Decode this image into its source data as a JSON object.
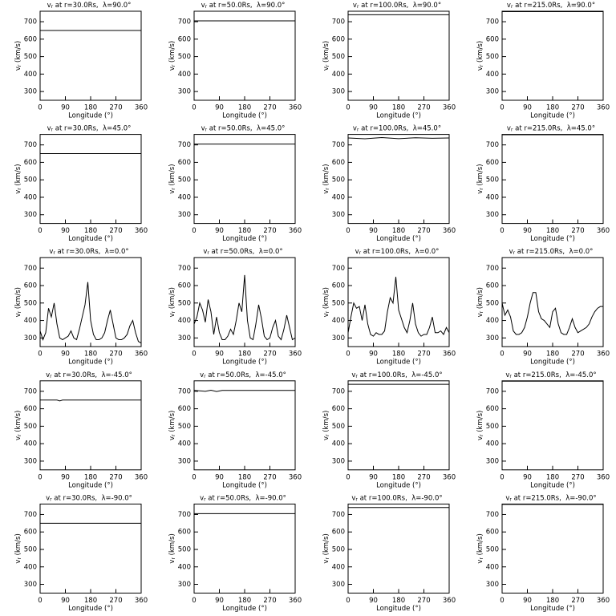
{
  "chart_data": [
    {
      "type": "line",
      "title": {
        "var": "v",
        "sub": "r",
        "text": " at r=30.0Rs,  λ=90.0°"
      },
      "xlabel": "Longitude (°)",
      "ylabel": {
        "var": "v",
        "sub": "r",
        "text": " (km/s)"
      },
      "x": [
        0,
        360
      ],
      "values": [
        650,
        650
      ],
      "color": "#000000",
      "xlim": [
        0,
        360
      ],
      "ylim": [
        250,
        760
      ],
      "xticks": [
        0,
        90,
        180,
        270,
        360
      ],
      "yticks": [
        300,
        400,
        500,
        600,
        700
      ]
    },
    {
      "type": "line",
      "title": {
        "var": "v",
        "sub": "r",
        "text": " at r=50.0Rs,  λ=90.0°"
      },
      "xlabel": "Longitude (°)",
      "ylabel": {
        "var": "v",
        "sub": "r",
        "text": " (km/s)"
      },
      "x": [
        0,
        360
      ],
      "values": [
        705,
        705
      ],
      "color": "#000000",
      "xlim": [
        0,
        360
      ],
      "ylim": [
        250,
        760
      ],
      "xticks": [
        0,
        90,
        180,
        270,
        360
      ],
      "yticks": [
        300,
        400,
        500,
        600,
        700
      ]
    },
    {
      "type": "line",
      "title": {
        "var": "v",
        "sub": "r",
        "text": " at r=100.0Rs,  λ=90.0°"
      },
      "xlabel": "Longitude (°)",
      "ylabel": {
        "var": "v",
        "sub": "r",
        "text": " (km/s)"
      },
      "x": [
        0,
        360
      ],
      "values": [
        740,
        740
      ],
      "color": "#000000",
      "xlim": [
        0,
        360
      ],
      "ylim": [
        250,
        760
      ],
      "xticks": [
        0,
        90,
        180,
        270,
        360
      ],
      "yticks": [
        300,
        400,
        500,
        600,
        700
      ]
    },
    {
      "type": "line",
      "title": {
        "var": "v",
        "sub": "r",
        "text": " at r=215.0Rs,  λ=90.0°"
      },
      "xlabel": "Longitude (°)",
      "ylabel": {
        "var": "v",
        "sub": "r",
        "text": " (km/s)"
      },
      "x": [
        0,
        360
      ],
      "values": [
        758,
        758
      ],
      "color": "#000000",
      "xlim": [
        0,
        360
      ],
      "ylim": [
        250,
        760
      ],
      "xticks": [
        0,
        90,
        180,
        270,
        360
      ],
      "yticks": [
        300,
        400,
        500,
        600,
        700
      ]
    },
    {
      "type": "line",
      "title": {
        "var": "v",
        "sub": "r",
        "text": " at r=30.0Rs,  λ=45.0°"
      },
      "xlabel": "Longitude (°)",
      "ylabel": {
        "var": "v",
        "sub": "r",
        "text": " (km/s)"
      },
      "x": [
        0,
        360
      ],
      "values": [
        650,
        650
      ],
      "color": "#000000",
      "xlim": [
        0,
        360
      ],
      "ylim": [
        250,
        760
      ],
      "xticks": [
        0,
        90,
        180,
        270,
        360
      ],
      "yticks": [
        300,
        400,
        500,
        600,
        700
      ]
    },
    {
      "type": "line",
      "title": {
        "var": "v",
        "sub": "r",
        "text": " at r=50.0Rs,  λ=45.0°"
      },
      "xlabel": "Longitude (°)",
      "ylabel": {
        "var": "v",
        "sub": "r",
        "text": " (km/s)"
      },
      "x": [
        0,
        360
      ],
      "values": [
        705,
        705
      ],
      "color": "#000000",
      "xlim": [
        0,
        360
      ],
      "ylim": [
        250,
        760
      ],
      "xticks": [
        0,
        90,
        180,
        270,
        360
      ],
      "yticks": [
        300,
        400,
        500,
        600,
        700
      ]
    },
    {
      "type": "line",
      "title": {
        "var": "v",
        "sub": "r",
        "text": " at r=100.0Rs,  λ=45.0°"
      },
      "xlabel": "Longitude (°)",
      "ylabel": {
        "var": "v",
        "sub": "r",
        "text": " (km/s)"
      },
      "x": [
        0,
        60,
        120,
        180,
        240,
        300,
        360
      ],
      "values": [
        740,
        735,
        742,
        736,
        741,
        738,
        740
      ],
      "color": "#000000",
      "xlim": [
        0,
        360
      ],
      "ylim": [
        250,
        760
      ],
      "xticks": [
        0,
        90,
        180,
        270,
        360
      ],
      "yticks": [
        300,
        400,
        500,
        600,
        700
      ]
    },
    {
      "type": "line",
      "title": {
        "var": "v",
        "sub": "r",
        "text": " at r=215.0Rs,  λ=45.0°"
      },
      "xlabel": "Longitude (°)",
      "ylabel": {
        "var": "v",
        "sub": "r",
        "text": " (km/s)"
      },
      "x": [
        0,
        360
      ],
      "values": [
        758,
        758
      ],
      "color": "#000000",
      "xlim": [
        0,
        360
      ],
      "ylim": [
        250,
        760
      ],
      "xticks": [
        0,
        90,
        180,
        270,
        360
      ],
      "yticks": [
        300,
        400,
        500,
        600,
        700
      ]
    },
    {
      "type": "line",
      "title": {
        "var": "v",
        "sub": "r",
        "text": " at r=30.0Rs,  λ=0.0°"
      },
      "xlabel": "Longitude (°)",
      "ylabel": {
        "var": "v",
        "sub": "r",
        "text": " (km/s)"
      },
      "x": [
        0,
        10,
        20,
        30,
        40,
        50,
        60,
        70,
        80,
        90,
        100,
        110,
        120,
        130,
        140,
        150,
        160,
        170,
        180,
        190,
        200,
        210,
        220,
        230,
        240,
        250,
        260,
        270,
        280,
        290,
        300,
        310,
        320,
        330,
        340,
        350,
        360
      ],
      "values": [
        340,
        290,
        330,
        470,
        420,
        500,
        380,
        300,
        290,
        300,
        310,
        340,
        300,
        290,
        350,
        420,
        490,
        620,
        400,
        320,
        290,
        290,
        300,
        330,
        400,
        460,
        380,
        300,
        290,
        290,
        300,
        320,
        370,
        400,
        330,
        280,
        270
      ],
      "color": "#000000",
      "xlim": [
        0,
        360
      ],
      "ylim": [
        250,
        760
      ],
      "xticks": [
        0,
        90,
        180,
        270,
        360
      ],
      "yticks": [
        300,
        400,
        500,
        600,
        700
      ]
    },
    {
      "type": "line",
      "title": {
        "var": "v",
        "sub": "r",
        "text": " at r=50.0Rs,  λ=0.0°"
      },
      "xlabel": "Longitude (°)",
      "ylabel": {
        "var": "v",
        "sub": "r",
        "text": " (km/s)"
      },
      "x": [
        0,
        10,
        20,
        30,
        40,
        50,
        60,
        70,
        80,
        90,
        100,
        110,
        120,
        130,
        140,
        150,
        160,
        170,
        180,
        190,
        200,
        210,
        220,
        230,
        240,
        250,
        260,
        270,
        280,
        290,
        300,
        310,
        320,
        330,
        340,
        350,
        360
      ],
      "values": [
        380,
        420,
        500,
        460,
        390,
        520,
        450,
        320,
        420,
        330,
        290,
        290,
        310,
        350,
        320,
        400,
        500,
        450,
        660,
        400,
        300,
        290,
        380,
        490,
        410,
        310,
        290,
        300,
        360,
        400,
        310,
        290,
        350,
        430,
        360,
        290,
        300
      ],
      "color": "#000000",
      "xlim": [
        0,
        360
      ],
      "ylim": [
        250,
        760
      ],
      "xticks": [
        0,
        90,
        180,
        270,
        360
      ],
      "yticks": [
        300,
        400,
        500,
        600,
        700
      ]
    },
    {
      "type": "line",
      "title": {
        "var": "v",
        "sub": "r",
        "text": " at r=100.0Rs,  λ=0.0°"
      },
      "xlabel": "Longitude (°)",
      "ylabel": {
        "var": "v",
        "sub": "r",
        "text": " (km/s)"
      },
      "x": [
        0,
        10,
        20,
        30,
        40,
        50,
        60,
        70,
        80,
        90,
        100,
        110,
        120,
        130,
        140,
        150,
        160,
        170,
        180,
        190,
        200,
        210,
        220,
        230,
        240,
        250,
        260,
        270,
        280,
        290,
        300,
        310,
        320,
        330,
        340,
        350,
        360
      ],
      "values": [
        330,
        420,
        500,
        470,
        480,
        400,
        490,
        380,
        320,
        310,
        330,
        320,
        320,
        340,
        450,
        530,
        500,
        650,
        460,
        410,
        360,
        330,
        400,
        500,
        380,
        330,
        310,
        320,
        320,
        360,
        420,
        330,
        330,
        340,
        320,
        360,
        330
      ],
      "color": "#000000",
      "xlim": [
        0,
        360
      ],
      "ylim": [
        250,
        760
      ],
      "xticks": [
        0,
        90,
        180,
        270,
        360
      ],
      "yticks": [
        300,
        400,
        500,
        600,
        700
      ]
    },
    {
      "type": "line",
      "title": {
        "var": "v",
        "sub": "r",
        "text": " at r=215.0Rs,  λ=0.0°"
      },
      "xlabel": "Longitude (°)",
      "ylabel": {
        "var": "v",
        "sub": "r",
        "text": " (km/s)"
      },
      "x": [
        0,
        10,
        20,
        30,
        40,
        50,
        60,
        70,
        80,
        90,
        100,
        110,
        120,
        130,
        140,
        150,
        160,
        170,
        180,
        190,
        200,
        210,
        220,
        230,
        240,
        250,
        260,
        270,
        280,
        290,
        300,
        310,
        320,
        330,
        340,
        350,
        360
      ],
      "values": [
        500,
        430,
        460,
        420,
        340,
        320,
        320,
        330,
        360,
        420,
        500,
        560,
        560,
        450,
        410,
        400,
        380,
        360,
        450,
        470,
        380,
        330,
        320,
        320,
        360,
        410,
        360,
        330,
        340,
        350,
        360,
        380,
        420,
        450,
        470,
        480,
        480
      ],
      "color": "#000000",
      "xlim": [
        0,
        360
      ],
      "ylim": [
        250,
        760
      ],
      "xticks": [
        0,
        90,
        180,
        270,
        360
      ],
      "yticks": [
        300,
        400,
        500,
        600,
        700
      ]
    },
    {
      "type": "line",
      "title": {
        "var": "v",
        "sub": "r",
        "text": " at r=30.0Rs,  λ=-45.0°"
      },
      "xlabel": "Longitude (°)",
      "ylabel": {
        "var": "v",
        "sub": "r",
        "text": " (km/s)"
      },
      "x": [
        0,
        60,
        70,
        80,
        360
      ],
      "values": [
        650,
        650,
        645,
        650,
        650
      ],
      "color": "#000000",
      "xlim": [
        0,
        360
      ],
      "ylim": [
        250,
        760
      ],
      "xticks": [
        0,
        90,
        180,
        270,
        360
      ],
      "yticks": [
        300,
        400,
        500,
        600,
        700
      ]
    },
    {
      "type": "line",
      "title": {
        "var": "v",
        "sub": "r",
        "text": " at r=50.0Rs,  λ=-45.0°"
      },
      "xlabel": "Longitude (°)",
      "ylabel": {
        "var": "v",
        "sub": "r",
        "text": " (km/s)"
      },
      "x": [
        0,
        40,
        60,
        80,
        100,
        360
      ],
      "values": [
        705,
        700,
        706,
        699,
        705,
        705
      ],
      "color": "#000000",
      "xlim": [
        0,
        360
      ],
      "ylim": [
        250,
        760
      ],
      "xticks": [
        0,
        90,
        180,
        270,
        360
      ],
      "yticks": [
        300,
        400,
        500,
        600,
        700
      ]
    },
    {
      "type": "line",
      "title": {
        "var": "v",
        "sub": "r",
        "text": " at r=100.0Rs,  λ=-45.0°"
      },
      "xlabel": "Longitude (°)",
      "ylabel": {
        "var": "v",
        "sub": "r",
        "text": " (km/s)"
      },
      "x": [
        0,
        360
      ],
      "values": [
        740,
        740
      ],
      "color": "#000000",
      "xlim": [
        0,
        360
      ],
      "ylim": [
        250,
        760
      ],
      "xticks": [
        0,
        90,
        180,
        270,
        360
      ],
      "yticks": [
        300,
        400,
        500,
        600,
        700
      ]
    },
    {
      "type": "line",
      "title": {
        "var": "v",
        "sub": "r",
        "text": " at r=215.0Rs,  λ=-45.0°"
      },
      "xlabel": "Longitude (°)",
      "ylabel": {
        "var": "v",
        "sub": "r",
        "text": " (km/s)"
      },
      "x": [
        0,
        360
      ],
      "values": [
        758,
        758
      ],
      "color": "#000000",
      "xlim": [
        0,
        360
      ],
      "ylim": [
        250,
        760
      ],
      "xticks": [
        0,
        90,
        180,
        270,
        360
      ],
      "yticks": [
        300,
        400,
        500,
        600,
        700
      ]
    },
    {
      "type": "line",
      "title": {
        "var": "v",
        "sub": "r",
        "text": " at r=30.0Rs,  λ=-90.0°"
      },
      "xlabel": "Longitude (°)",
      "ylabel": {
        "var": "v",
        "sub": "r",
        "text": " (km/s)"
      },
      "x": [
        0,
        360
      ],
      "values": [
        650,
        650
      ],
      "color": "#000000",
      "xlim": [
        0,
        360
      ],
      "ylim": [
        250,
        760
      ],
      "xticks": [
        0,
        90,
        180,
        270,
        360
      ],
      "yticks": [
        300,
        400,
        500,
        600,
        700
      ]
    },
    {
      "type": "line",
      "title": {
        "var": "v",
        "sub": "r",
        "text": " at r=50.0Rs,  λ=-90.0°"
      },
      "xlabel": "Longitude (°)",
      "ylabel": {
        "var": "v",
        "sub": "r",
        "text": " (km/s)"
      },
      "x": [
        0,
        360
      ],
      "values": [
        705,
        705
      ],
      "color": "#000000",
      "xlim": [
        0,
        360
      ],
      "ylim": [
        250,
        760
      ],
      "xticks": [
        0,
        90,
        180,
        270,
        360
      ],
      "yticks": [
        300,
        400,
        500,
        600,
        700
      ]
    },
    {
      "type": "line",
      "title": {
        "var": "v",
        "sub": "r",
        "text": " at r=100.0Rs,  λ=-90.0°"
      },
      "xlabel": "Longitude (°)",
      "ylabel": {
        "var": "v",
        "sub": "r",
        "text": " (km/s)"
      },
      "x": [
        0,
        360
      ],
      "values": [
        740,
        740
      ],
      "color": "#000000",
      "xlim": [
        0,
        360
      ],
      "ylim": [
        250,
        760
      ],
      "xticks": [
        0,
        90,
        180,
        270,
        360
      ],
      "yticks": [
        300,
        400,
        500,
        600,
        700
      ]
    },
    {
      "type": "line",
      "title": {
        "var": "v",
        "sub": "r",
        "text": " at r=215.0Rs,  λ=-90.0°"
      },
      "xlabel": "Longitude (°)",
      "ylabel": {
        "var": "v",
        "sub": "r",
        "text": " (km/s)"
      },
      "x": [
        0,
        360
      ],
      "values": [
        758,
        758
      ],
      "color": "#000000",
      "xlim": [
        0,
        360
      ],
      "ylim": [
        250,
        760
      ],
      "xticks": [
        0,
        90,
        180,
        270,
        360
      ],
      "yticks": [
        300,
        400,
        500,
        600,
        700
      ]
    }
  ]
}
